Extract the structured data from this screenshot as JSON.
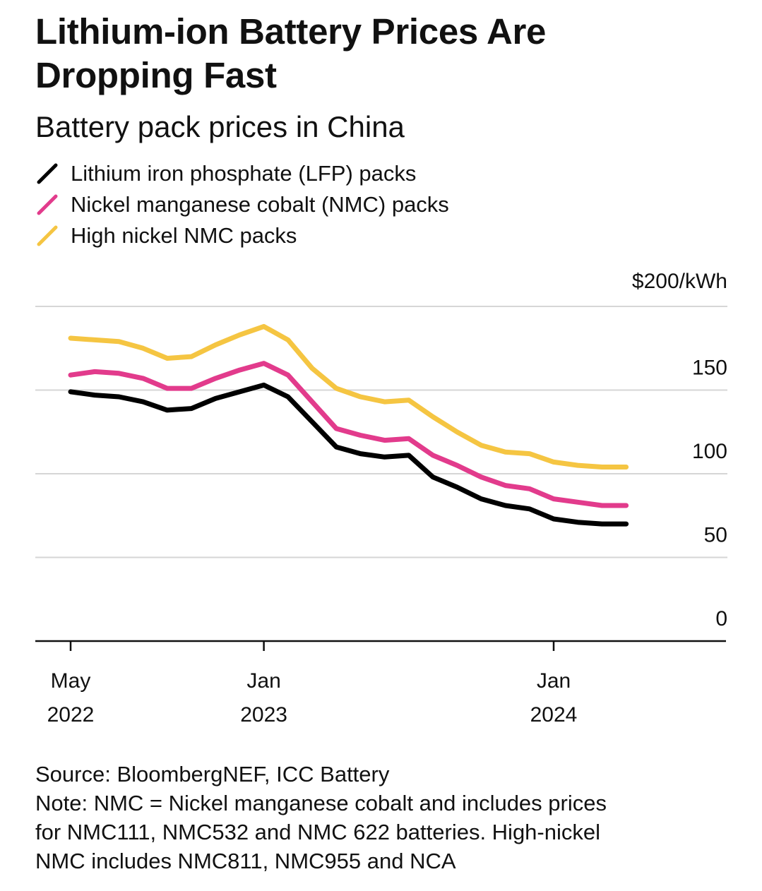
{
  "chart_data": {
    "type": "line",
    "title": "Lithium-ion Battery Prices Are Dropping Fast",
    "subtitle": "Battery pack prices in China",
    "unit_label": "$200/kWh",
    "ylim": [
      0,
      200
    ],
    "yticks": [
      {
        "value": 200,
        "label": "$200/kWh"
      },
      {
        "value": 150,
        "label": "150"
      },
      {
        "value": 100,
        "label": "100"
      },
      {
        "value": 50,
        "label": "50"
      },
      {
        "value": 0,
        "label": "0"
      }
    ],
    "x": [
      "2022-05",
      "2022-06",
      "2022-07",
      "2022-08",
      "2022-09",
      "2022-10",
      "2022-11",
      "2022-12",
      "2023-01",
      "2023-02",
      "2023-03",
      "2023-04",
      "2023-05",
      "2023-06",
      "2023-07",
      "2023-08",
      "2023-09",
      "2023-10",
      "2023-11",
      "2023-12",
      "2024-01",
      "2024-02",
      "2024-03",
      "2024-04"
    ],
    "xticks": [
      {
        "index": 0,
        "month": "May",
        "year": "2022"
      },
      {
        "index": 8,
        "month": "Jan",
        "year": "2023"
      },
      {
        "index": 20,
        "month": "Jan",
        "year": "2024"
      }
    ],
    "series": [
      {
        "name": "Lithium iron phosphate (LFP) packs",
        "color": "#000000",
        "values": [
          149,
          147,
          146,
          143,
          138,
          139,
          145,
          149,
          153,
          146,
          131,
          116,
          112,
          110,
          111,
          98,
          92,
          85,
          81,
          79,
          73,
          71,
          70,
          70
        ]
      },
      {
        "name": "Nickel manganese cobalt (NMC) packs",
        "color": "#e23b8c",
        "values": [
          159,
          161,
          160,
          157,
          151,
          151,
          157,
          162,
          166,
          159,
          143,
          127,
          123,
          120,
          121,
          111,
          105,
          98,
          93,
          91,
          85,
          83,
          81,
          81
        ]
      },
      {
        "name": "High nickel NMC packs",
        "color": "#f5c542",
        "values": [
          181,
          180,
          179,
          175,
          169,
          170,
          177,
          183,
          188,
          180,
          163,
          151,
          146,
          143,
          144,
          134,
          125,
          117,
          113,
          112,
          107,
          105,
          104,
          104
        ]
      }
    ]
  },
  "footnote": {
    "source": "Source: BloombergNEF, ICC Battery",
    "note_lines": [
      "Note: NMC = Nickel manganese cobalt and includes prices",
      "for NMC111, NMC532 and NMC 622 batteries. High-nickel",
      "NMC includes NMC811, NMC955 and NCA"
    ]
  }
}
